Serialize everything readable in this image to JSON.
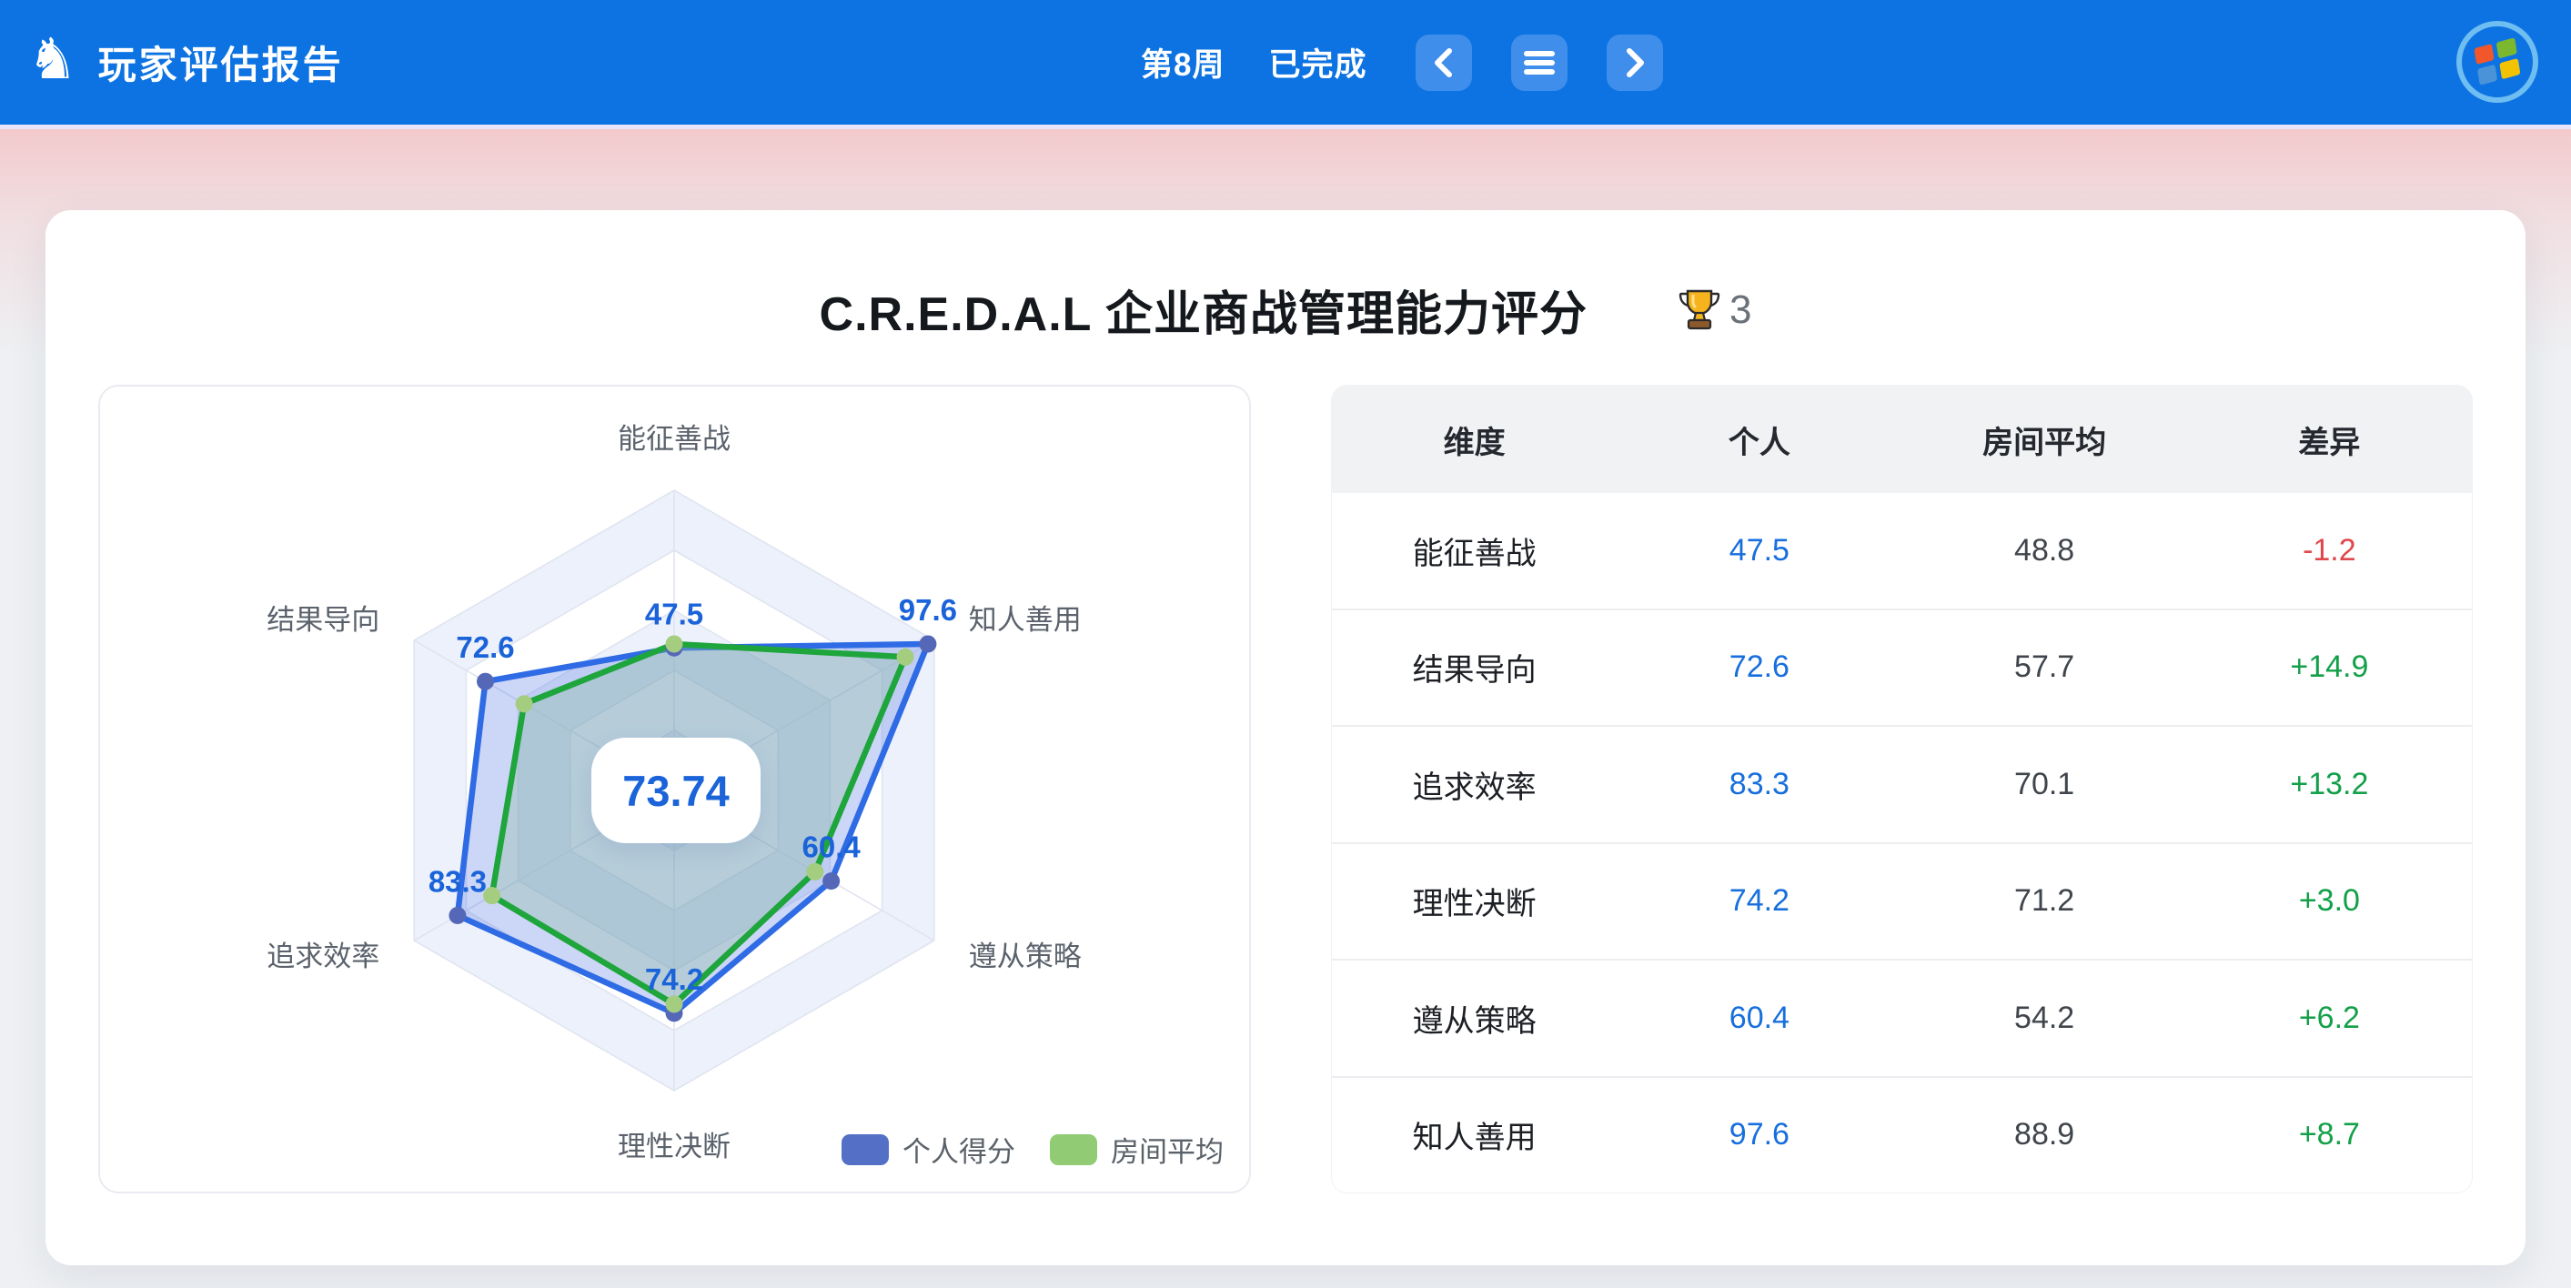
{
  "header": {
    "title": "玩家评估报告",
    "week": "第8周",
    "status": "已完成"
  },
  "report": {
    "title": "C.R.E.D.A.L 企业商战管理能力评分",
    "trophy_count": "3"
  },
  "chart_data": {
    "type": "radar",
    "indicators": [
      "能征善战",
      "知人善用",
      "遵从策略",
      "理性决断",
      "追求效率",
      "结果导向"
    ],
    "max": 100,
    "rings": 5,
    "center_score": "73.74",
    "label_color": "#1a63d9",
    "axis_name_color": "#5b626c",
    "grid": {
      "band_colors": [
        "#edf1fb",
        "#ffffff"
      ],
      "line_color": "#dfe4f0"
    },
    "series": [
      {
        "name": "个人得分",
        "values": [
          47.5,
          97.6,
          60.4,
          74.2,
          83.3,
          72.6
        ],
        "line_color": "#2e6be4",
        "marker_color": "#5568b8",
        "fill_color": "rgba(85,118,228,0.30)",
        "legend_color": "#5470c6",
        "show_labels": true
      },
      {
        "name": "房间平均",
        "values": [
          48.8,
          88.9,
          54.2,
          71.2,
          70.1,
          57.7
        ],
        "line_color": "#1ea53c",
        "marker_color": "#a5cd80",
        "fill_color": "rgba(140,190,160,0.35)",
        "legend_color": "#91cc75",
        "show_labels": false
      }
    ]
  },
  "table": {
    "headers": [
      "维度",
      "个人",
      "房间平均",
      "差异"
    ],
    "rows": [
      {
        "dim": "能征善战",
        "personal": "47.5",
        "avg": "48.8",
        "diff": "-1.2"
      },
      {
        "dim": "结果导向",
        "personal": "72.6",
        "avg": "57.7",
        "diff": "+14.9"
      },
      {
        "dim": "追求效率",
        "personal": "83.3",
        "avg": "70.1",
        "diff": "+13.2"
      },
      {
        "dim": "理性决断",
        "personal": "74.2",
        "avg": "71.2",
        "diff": "+3.0"
      },
      {
        "dim": "遵从策略",
        "personal": "60.4",
        "avg": "54.2",
        "diff": "+6.2"
      },
      {
        "dim": "知人善用",
        "personal": "97.6",
        "avg": "88.9",
        "diff": "+8.7"
      }
    ],
    "colors": {
      "personal": "#176fdd",
      "avg": "#40454c",
      "positive": "#13a049",
      "negative": "#e0474b"
    }
  }
}
